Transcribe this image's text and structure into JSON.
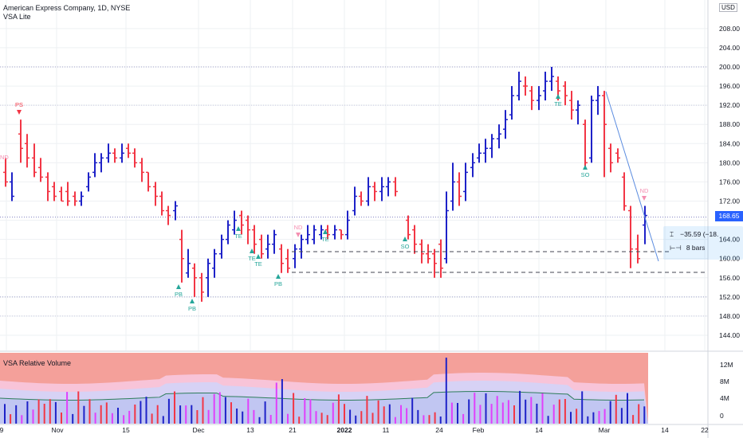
{
  "header": {
    "title": "American Express Company, 1D, NYSE",
    "indicator": "VSA Lite",
    "currency": "USD"
  },
  "price_axis": {
    "ticks": [
      "208.00",
      "204.00",
      "200.00",
      "196.00",
      "192.00",
      "188.00",
      "184.00",
      "180.00",
      "176.00",
      "172.00",
      "164.00",
      "160.00",
      "156.00",
      "152.00",
      "148.00",
      "144.00"
    ],
    "last_price": "168.65"
  },
  "volume_pane": {
    "title": "VSA Relative Volume",
    "ticks": [
      "12M",
      "8M",
      "4M",
      "0"
    ]
  },
  "time_axis": {
    "ticks": [
      "9",
      "Nov",
      "15",
      "Dec",
      "13",
      "21",
      "2022",
      "11",
      "24",
      "Feb",
      "14",
      "Mar",
      "14",
      "22"
    ]
  },
  "measure": {
    "change": "−35.59 (−18.",
    "bars": "8 bars"
  },
  "signals": [
    {
      "label": "PS",
      "color": "#f23645"
    },
    {
      "label": "ND",
      "color": "#f48fb1"
    },
    {
      "label": "PB",
      "color": "#26a69a"
    },
    {
      "label": "PB",
      "color": "#26a69a"
    },
    {
      "label": "TE",
      "color": "#26a69a"
    },
    {
      "label": "TE",
      "color": "#26a69a"
    },
    {
      "label": "TE",
      "color": "#26a69a"
    },
    {
      "label": "PB",
      "color": "#26a69a"
    },
    {
      "label": "ND",
      "color": "#f48fb1"
    },
    {
      "label": "TE",
      "color": "#26a69a"
    },
    {
      "label": "SO",
      "color": "#26a69a"
    },
    {
      "label": "TE",
      "color": "#26a69a"
    },
    {
      "label": "SO",
      "color": "#26a69a"
    },
    {
      "label": "ND",
      "color": "#f48fb1"
    }
  ],
  "colors": {
    "up": "#1e22c8",
    "down": "#f23645",
    "accent": "#2962ff"
  }
}
